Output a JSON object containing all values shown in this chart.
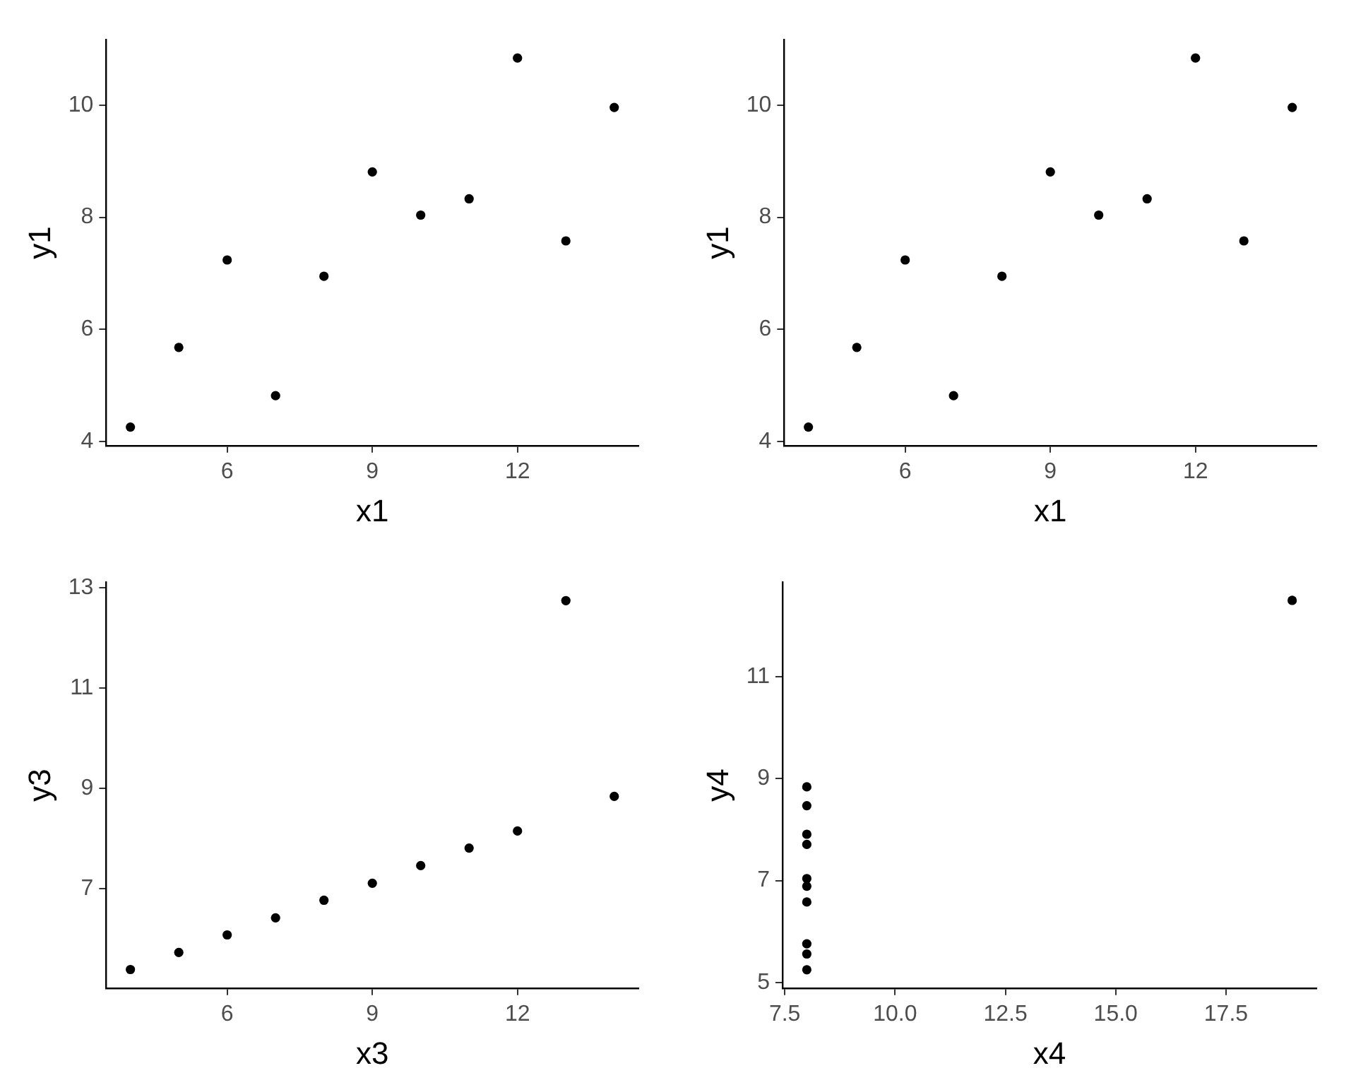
{
  "chart_data": [
    {
      "type": "scatter",
      "xlabel": "x1",
      "ylabel": "y1",
      "marker": "circle",
      "xlim": [
        3.5,
        14.5
      ],
      "ylim": [
        3.93,
        11.17
      ],
      "xticks": [
        6,
        9,
        12
      ],
      "yticks": [
        4,
        6,
        8,
        10
      ],
      "series": [
        {
          "color": "#000000",
          "x": [
            10,
            8,
            13,
            9,
            11,
            14,
            6,
            4,
            12,
            7,
            5
          ],
          "values": [
            8.04,
            6.95,
            7.58,
            8.81,
            8.33,
            9.96,
            7.24,
            4.26,
            10.84,
            4.82,
            5.68
          ]
        }
      ]
    },
    {
      "type": "scatter",
      "xlabel": "x1",
      "ylabel": "y1",
      "marker": "circle",
      "xlim": [
        3.5,
        14.5
      ],
      "ylim": [
        3.93,
        11.17
      ],
      "xticks": [
        6,
        9,
        12
      ],
      "yticks": [
        4,
        6,
        8,
        10
      ],
      "series": [
        {
          "color": "#000000",
          "x": [
            10,
            8,
            13,
            9,
            11,
            14,
            6,
            4,
            12,
            7,
            5
          ],
          "values": [
            8.04,
            6.95,
            7.58,
            8.81,
            8.33,
            9.96,
            7.24,
            4.26,
            10.84,
            4.82,
            5.68
          ]
        }
      ]
    },
    {
      "type": "scatter",
      "xlabel": "x3",
      "ylabel": "y3",
      "marker": "circle",
      "xlim": [
        3.5,
        14.5
      ],
      "ylim": [
        5.02,
        13.11
      ],
      "xticks": [
        6,
        9,
        12
      ],
      "yticks": [
        7,
        9,
        11,
        13
      ],
      "series": [
        {
          "color": "#000000",
          "x": [
            10,
            8,
            13,
            9,
            11,
            14,
            6,
            4,
            12,
            7,
            5
          ],
          "values": [
            7.46,
            6.77,
            12.74,
            7.11,
            7.81,
            8.84,
            6.08,
            5.39,
            8.15,
            6.42,
            5.73
          ]
        }
      ]
    },
    {
      "type": "scatter",
      "xlabel": "x4",
      "ylabel": "y4",
      "marker": "circle",
      "xlim": [
        7.45,
        19.55
      ],
      "ylim": [
        4.89,
        12.86
      ],
      "xticks": [
        7.5,
        {
          "value": 10,
          "label": "10.0"
        },
        12.5,
        {
          "value": 15,
          "label": "15.0"
        },
        17.5
      ],
      "yticks": [
        5,
        7,
        9,
        11
      ],
      "series": [
        {
          "color": "#000000",
          "x": [
            8,
            8,
            8,
            8,
            8,
            8,
            8,
            19,
            8,
            8,
            8
          ],
          "values": [
            6.58,
            5.76,
            7.71,
            8.84,
            8.47,
            7.04,
            5.25,
            12.5,
            5.56,
            7.91,
            6.89
          ]
        }
      ]
    }
  ]
}
